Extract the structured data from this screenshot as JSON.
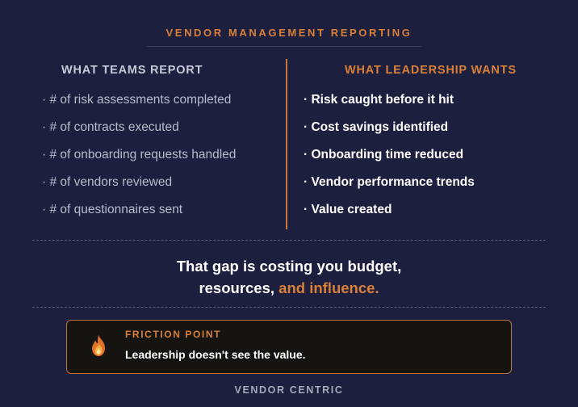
{
  "header": {
    "title": "VENDOR MANAGEMENT REPORTING"
  },
  "left_column": {
    "heading": "WHAT TEAMS REPORT",
    "items": [
      "· # of risk assessments completed",
      "· # of contracts executed",
      "· # of onboarding requests handled",
      "· # of vendors reviewed",
      "· # of questionnaires sent"
    ]
  },
  "right_column": {
    "heading": "WHAT LEADERSHIP WANTS",
    "items": [
      "· Risk caught before it hit",
      "· Cost savings identified",
      "· Onboarding time reduced",
      "· Vendor performance trends",
      "· Value created"
    ]
  },
  "gap_message": {
    "line1": "That gap is costing you budget,",
    "line2_start": "resources, ",
    "line2_accent": "and influence."
  },
  "callout": {
    "icon": "flame-icon",
    "label": "FRICTION POINT",
    "text": "Leadership doesn't see the value."
  },
  "footer": {
    "text": "VENDOR CENTRIC"
  },
  "colors": {
    "background": "#1c1f3d",
    "accent": "#d9803a",
    "callout_bg": "#151411"
  }
}
